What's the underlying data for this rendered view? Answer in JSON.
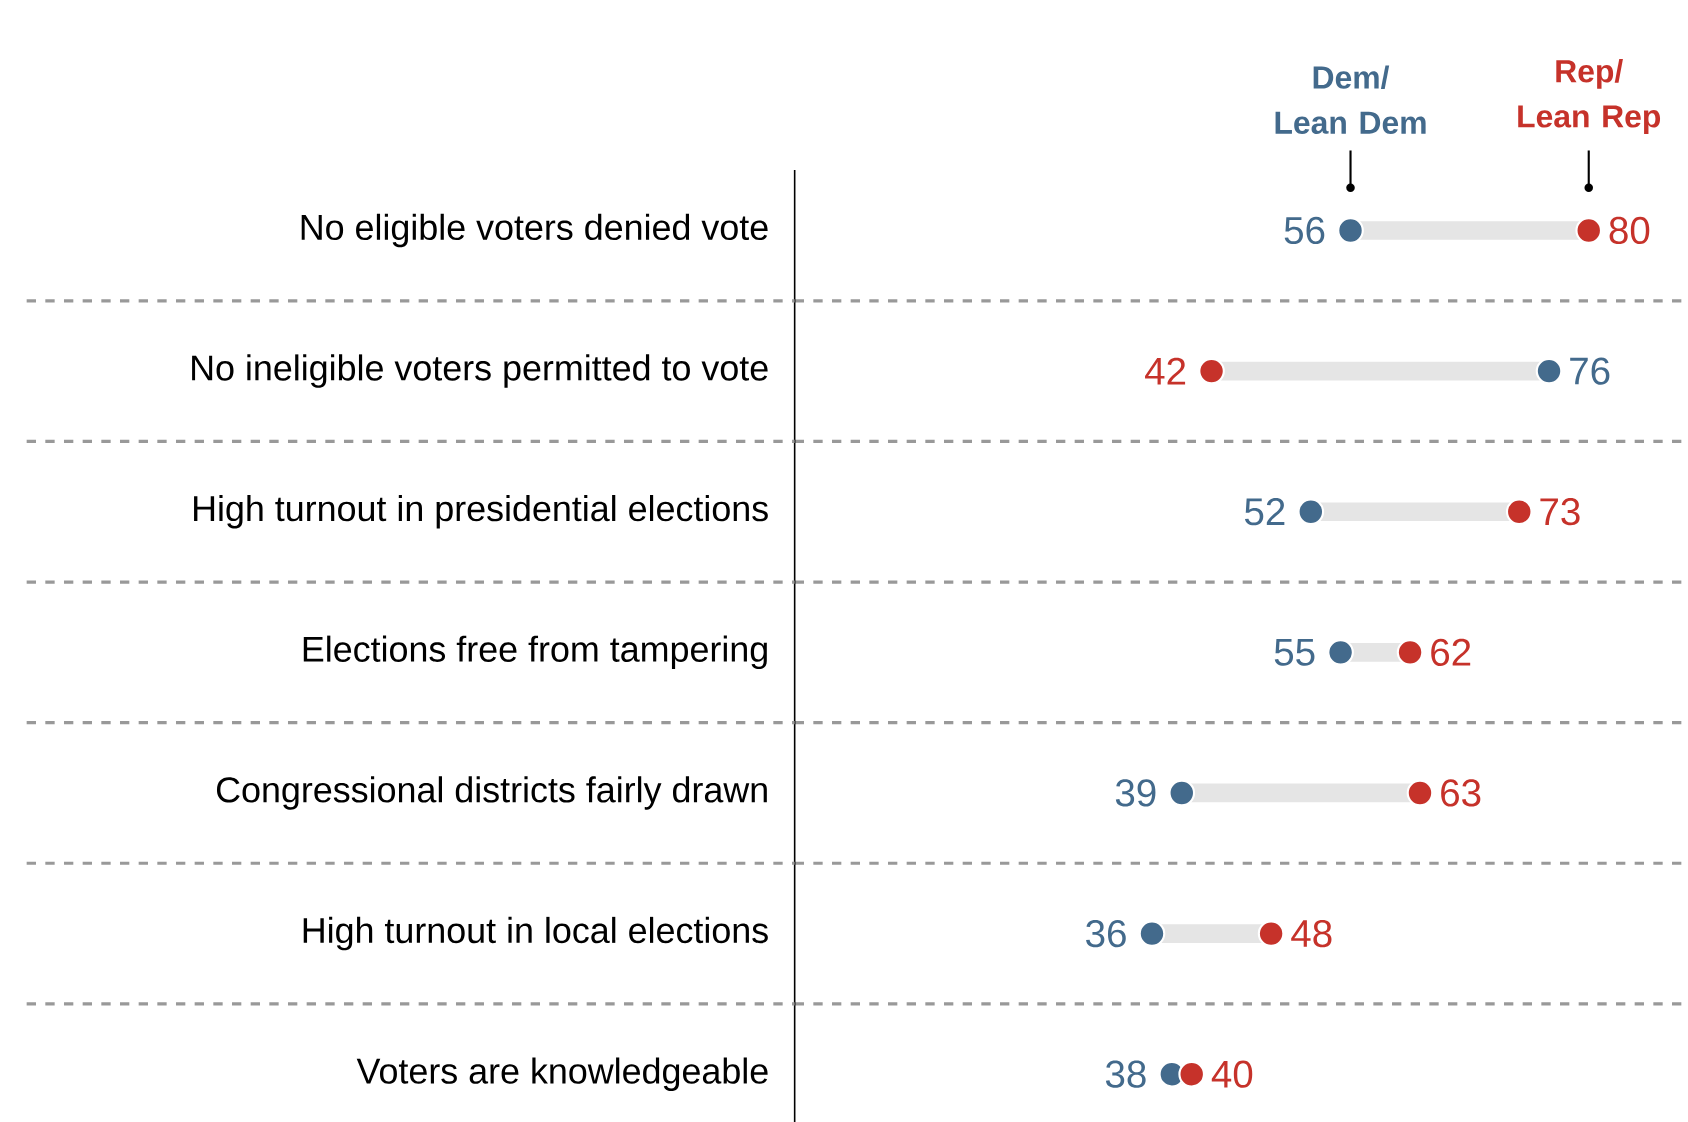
{
  "chart_data": {
    "type": "scatter",
    "orientation": "horizontal",
    "categories": [
      "No eligible voters denied vote",
      "No ineligible voters permitted to vote",
      "High turnout in presidential elections",
      "Elections free from tampering",
      "Congressional districts fairly drawn",
      "High turnout in local elections",
      "Voters are knowledgeable"
    ],
    "xlim": [
      0,
      90
    ],
    "tick_labels": "y",
    "grid": "y",
    "marker": "circle",
    "series": [
      {
        "name": "Dem/ Lean Dem",
        "color": "#436a8c",
        "values": [
          56,
          76,
          52,
          55,
          39,
          36,
          38
        ],
        "value_labels": [
          "56",
          "76",
          "52",
          "55",
          "39",
          "36",
          "38"
        ]
      },
      {
        "name": "Rep/ Lean Rep",
        "color": "#c6322a",
        "values": [
          80,
          42,
          73,
          62,
          63,
          48,
          40
        ],
        "value_labels": [
          "80",
          "42",
          "73",
          "62",
          "63",
          "48",
          "40"
        ]
      }
    ]
  }
}
